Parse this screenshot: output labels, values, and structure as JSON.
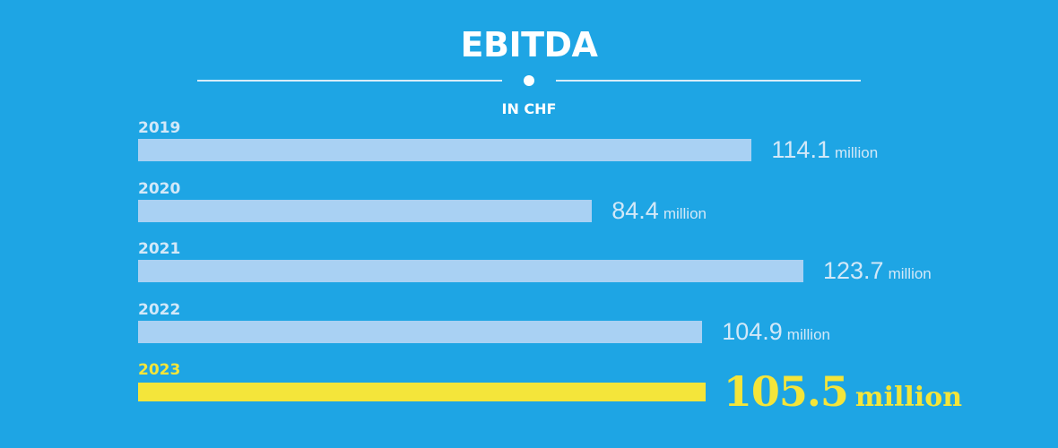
{
  "header": {
    "title": "EBITDA",
    "subtitle": "IN CHF"
  },
  "colors": {
    "background": "#1ea5e4",
    "bar": "#a9d1f3",
    "highlight": "#f4e53a",
    "label": "#d2e8f8",
    "white": "#ffffff"
  },
  "chart_data": {
    "type": "bar",
    "orientation": "horizontal",
    "title": "EBITDA",
    "subtitle": "IN CHF",
    "categories": [
      "2019",
      "2020",
      "2021",
      "2022",
      "2023"
    ],
    "values": [
      114.1,
      84.4,
      123.7,
      104.9,
      105.5
    ],
    "value_labels": [
      "114.1",
      "84.4",
      "123.7",
      "104.9",
      "105.5"
    ],
    "unit_label": "million",
    "highlight_index": 4,
    "xlim": [
      0,
      123.7
    ],
    "grid": false,
    "legend": "none"
  }
}
